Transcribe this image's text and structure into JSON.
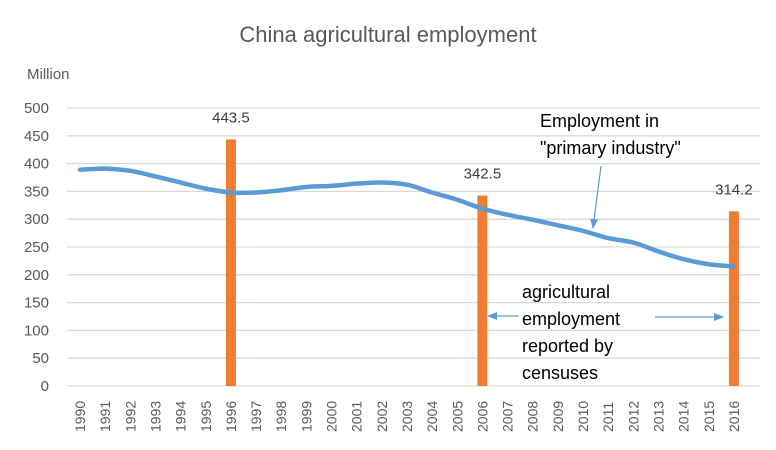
{
  "chart_data": {
    "type": "line",
    "title": "China agricultural employment",
    "ylabel": "Million",
    "xlabel": "",
    "ylim": [
      0,
      500
    ],
    "yticks": [
      0,
      50,
      100,
      150,
      200,
      250,
      300,
      350,
      400,
      450,
      500
    ],
    "grid": true,
    "categories": [
      "1990",
      "1991",
      "1992",
      "1993",
      "1994",
      "1995",
      "1996",
      "1997",
      "1998",
      "1999",
      "2000",
      "2001",
      "2002",
      "2003",
      "2004",
      "2005",
      "2006",
      "2007",
      "2008",
      "2009",
      "2010",
      "2011",
      "2012",
      "2013",
      "2014",
      "2015",
      "2016"
    ],
    "series": [
      {
        "name": "Employment in \"primary industry\"",
        "type": "line",
        "color": "#5B9BD5",
        "values": [
          389,
          391,
          387,
          377,
          366,
          355,
          348,
          348,
          352,
          358,
          360,
          364,
          366,
          362,
          348,
          335,
          319,
          308,
          299,
          289,
          279,
          266,
          258,
          242,
          228,
          219,
          215
        ]
      },
      {
        "name": "agricultural employment reported by censuses",
        "type": "bar",
        "color": "#ED7D31",
        "points": [
          {
            "x": "1996",
            "value": 443.5,
            "label": "443.5"
          },
          {
            "x": "2006",
            "value": 342.5,
            "label": "342.5"
          },
          {
            "x": "2016",
            "value": 314.2,
            "label": "314.2"
          }
        ]
      }
    ],
    "annotations": [
      {
        "text_lines": [
          "Employment in",
          "\"primary industry\""
        ],
        "points_to": "line series near 2010"
      },
      {
        "text_lines": [
          "agricultural",
          "employment",
          "reported by",
          "censuses"
        ],
        "points_to": "bars at 2006 and 2016"
      }
    ]
  },
  "labels": {
    "title": "China agricultural employment",
    "unit": "Million"
  }
}
